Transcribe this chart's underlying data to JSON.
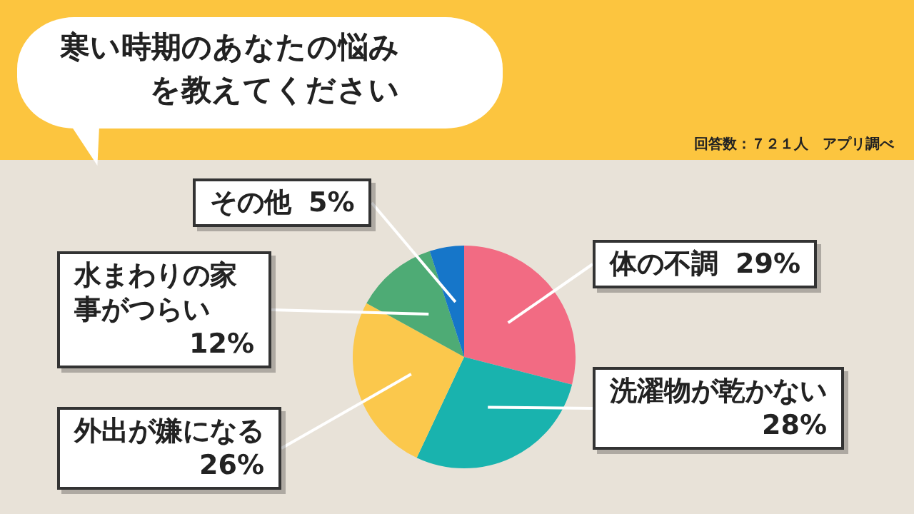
{
  "chart_data": {
    "type": "pie",
    "title": "寒い時期のあなたの悩みを教えてください",
    "annotations": [
      "回答数：７２１人　アプリ調べ"
    ],
    "categories": [
      "体の不調",
      "洗濯物が乾かない",
      "外出が嫌になる",
      "水まわりの家事がつらい",
      "その他"
    ],
    "values": [
      29,
      28,
      26,
      12,
      5
    ],
    "value_labels": [
      "29%",
      "28%",
      "26%",
      "12%",
      "5%"
    ],
    "colors": [
      "#f26b83",
      "#19b3ae",
      "#fbc84c",
      "#4eab75",
      "#1676c9"
    ],
    "legend": false
  }
}
